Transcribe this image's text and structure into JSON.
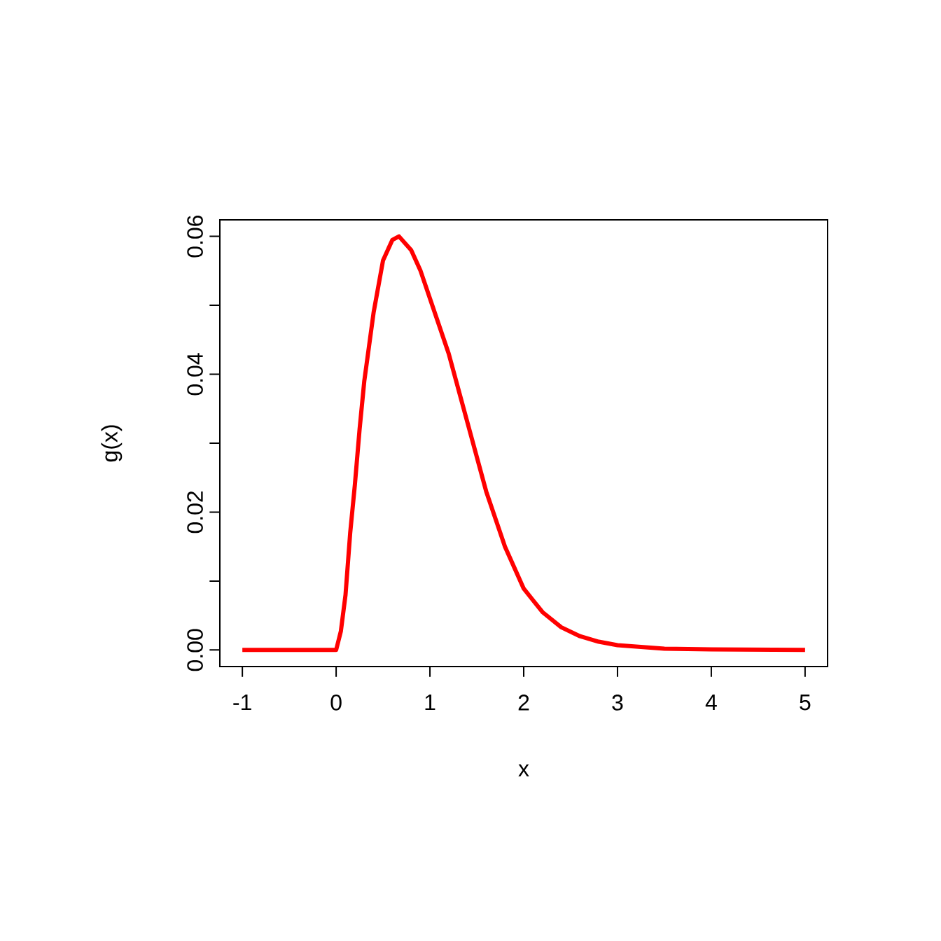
{
  "chart_data": {
    "type": "line",
    "xlabel": "x",
    "ylabel": "g(x)",
    "xlim": [
      -1.24,
      5.24
    ],
    "ylim": [
      -0.0024,
      0.0624
    ],
    "xticks": [
      -1,
      0,
      1,
      2,
      3,
      4,
      5
    ],
    "yticks": [
      {
        "value": 0,
        "label": "0.00"
      },
      {
        "value": 0.01,
        "label": null
      },
      {
        "value": 0.02,
        "label": "0.02"
      },
      {
        "value": 0.03,
        "label": null
      },
      {
        "value": 0.04,
        "label": "0.04"
      },
      {
        "value": 0.05,
        "label": null
      },
      {
        "value": 0.06,
        "label": "0.06"
      }
    ],
    "series": [
      {
        "color": "#ff0000",
        "x": [
          -1,
          0,
          0.05,
          0.1,
          0.15,
          0.2,
          0.25,
          0.3,
          0.35,
          0.4,
          0.5,
          0.6,
          0.67,
          0.8,
          0.9,
          1.0,
          1.2,
          1.4,
          1.6,
          1.8,
          2.0,
          2.2,
          2.4,
          2.6,
          2.8,
          3.0,
          3.5,
          4.0,
          5.0
        ],
        "values": [
          0,
          0,
          0.0027,
          0.008,
          0.017,
          0.024,
          0.032,
          0.039,
          0.044,
          0.049,
          0.0565,
          0.0595,
          0.06,
          0.058,
          0.055,
          0.051,
          0.043,
          0.033,
          0.023,
          0.015,
          0.0089,
          0.0055,
          0.0033,
          0.002,
          0.0012,
          0.0007,
          0.0002,
          0.0001,
          0
        ]
      }
    ]
  }
}
